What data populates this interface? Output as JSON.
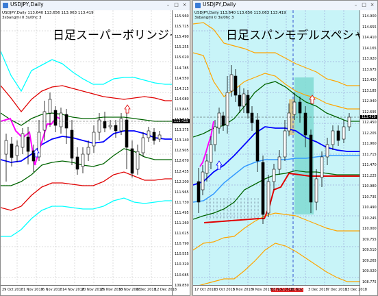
{
  "left": {
    "window_title": "USDJPY,Daily",
    "symbol_info": "USDJPY,Daily  113.640 113.656 113.063 113.419",
    "indicator_info": "3sbangmi  0  3s/0hc 3",
    "big_label": "日足スーパーボリンジャー",
    "price_box": "113.419",
    "yticks": [
      "115.960",
      "115.725",
      "115.490",
      "115.255",
      "115.020",
      "114.785",
      "114.550",
      "114.315",
      "114.080",
      "113.845",
      "113.610",
      "113.375",
      "113.140",
      "112.905",
      "112.670",
      "112.435",
      "112.200",
      "111.965",
      "111.730",
      "111.495",
      "111.260",
      "111.025",
      "110.790",
      "110.555",
      "110.320",
      "110.085",
      "109.850"
    ],
    "xticks": [
      "29 Oct 2018",
      "1 Nov 2018",
      "6 Nov 2018",
      "14 Nov 2018",
      "20 Nov 2018",
      "26 Nov 2018",
      "30 Nov 2018",
      "6 Dec 2018",
      "12 Dec 2018"
    ]
  },
  "right": {
    "window_title": "USDJPY,Daily",
    "symbol_info": "USDJPY,Daily  113.640 113.656 113.063 113.419",
    "indicator_info": "3sbangmi  0  3s/0hc 3",
    "big_label": "日足スパンモデルスペシャル",
    "price_box": "113.419",
    "date_highlight": "2018.11.29 00:00",
    "yticks": [
      "114.900",
      "114.655",
      "114.410",
      "114.165",
      "113.920",
      "113.675",
      "113.430",
      "113.185",
      "112.940",
      "112.695",
      "112.450",
      "112.205",
      "111.960",
      "111.715",
      "111.470",
      "111.225",
      "110.980",
      "110.735",
      "110.490",
      "110.245",
      "110.000",
      "109.755",
      "109.510",
      "109.265",
      "109.020",
      "108.775"
    ],
    "xticks": [
      "17 Oct 2018",
      "23 Oct 2018",
      "5 Nov 2018",
      "9 Nov 2018",
      "15 Nov 2018",
      "21 Nov",
      "3 Dec 2018",
      "7 Dec 2018",
      "13 Dec 2018"
    ]
  },
  "titlebar_buttons": {
    "min": "–",
    "max": "□",
    "close": "×"
  }
}
